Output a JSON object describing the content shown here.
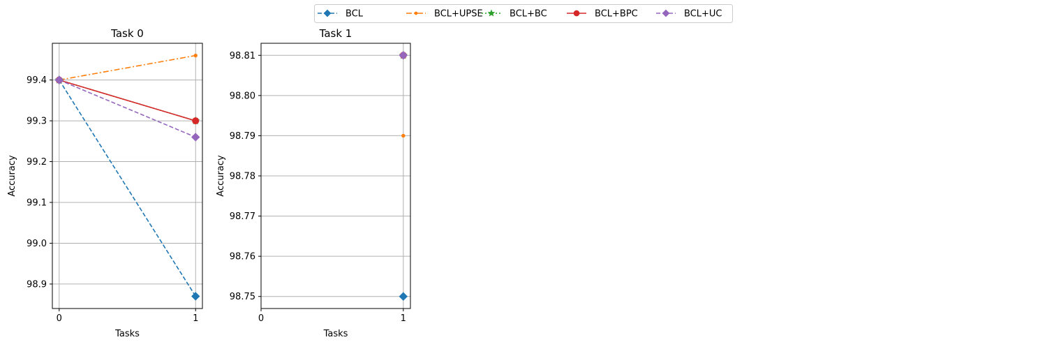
{
  "legend": {
    "placement": "top-center",
    "entries": [
      {
        "name": "BCL",
        "color": "#1f77b4",
        "marker": "diamond",
        "linestyle": "dashed"
      },
      {
        "name": "BCL+UPSE",
        "color": "#ff7f0e",
        "marker": "point",
        "linestyle": "dashdot"
      },
      {
        "name": "BCL+BC",
        "color": "#2ca02c",
        "marker": "star",
        "linestyle": "dotted"
      },
      {
        "name": "BCL+BPC",
        "color": "#d62728",
        "marker": "circle",
        "linestyle": "solid"
      },
      {
        "name": "BCL+UC",
        "color": "#9467bd",
        "marker": "diamond",
        "linestyle": "dashed"
      }
    ]
  },
  "chart_data": [
    {
      "type": "line",
      "title": "Task 0",
      "xlabel": "Tasks",
      "ylabel": "Accuracy",
      "x": [
        0,
        1
      ],
      "xlim": [
        -0.05,
        1.05
      ],
      "ylim": [
        98.84,
        99.49
      ],
      "xticks": [
        "0",
        "1"
      ],
      "yticks": [
        "98.9",
        "99.0",
        "99.1",
        "99.2",
        "99.3",
        "99.4"
      ],
      "grid": true,
      "series": [
        {
          "name": "BCL",
          "x": [
            0,
            1
          ],
          "values": [
            99.4,
            98.87
          ]
        },
        {
          "name": "BCL+UPSE",
          "x": [
            0,
            1
          ],
          "values": [
            99.4,
            99.46
          ]
        },
        {
          "name": "BCL+BC",
          "x": [
            0,
            1
          ],
          "values": [
            99.4,
            99.3
          ]
        },
        {
          "name": "BCL+BPC",
          "x": [
            0,
            1
          ],
          "values": [
            99.4,
            99.3
          ]
        },
        {
          "name": "BCL+UC",
          "x": [
            0,
            1
          ],
          "values": [
            99.4,
            99.26
          ]
        }
      ]
    },
    {
      "type": "line",
      "title": "Task 1",
      "xlabel": "Tasks",
      "ylabel": "Accuracy",
      "x": [
        1
      ],
      "xlim": [
        0,
        1.05
      ],
      "ylim": [
        98.747,
        98.813
      ],
      "xticks": [
        "0",
        "1"
      ],
      "yticks": [
        "98.75",
        "98.76",
        "98.77",
        "98.78",
        "98.79",
        "98.80",
        "98.81"
      ],
      "grid": true,
      "series": [
        {
          "name": "BCL",
          "x": [
            1
          ],
          "values": [
            98.75
          ]
        },
        {
          "name": "BCL+UPSE",
          "x": [
            1
          ],
          "values": [
            98.79
          ]
        },
        {
          "name": "BCL+BC",
          "x": [
            1
          ],
          "values": [
            98.81
          ]
        },
        {
          "name": "BCL+BPC",
          "x": [
            1
          ],
          "values": [
            98.81
          ]
        },
        {
          "name": "BCL+UC",
          "x": [
            1
          ],
          "values": [
            98.81
          ]
        }
      ]
    }
  ]
}
